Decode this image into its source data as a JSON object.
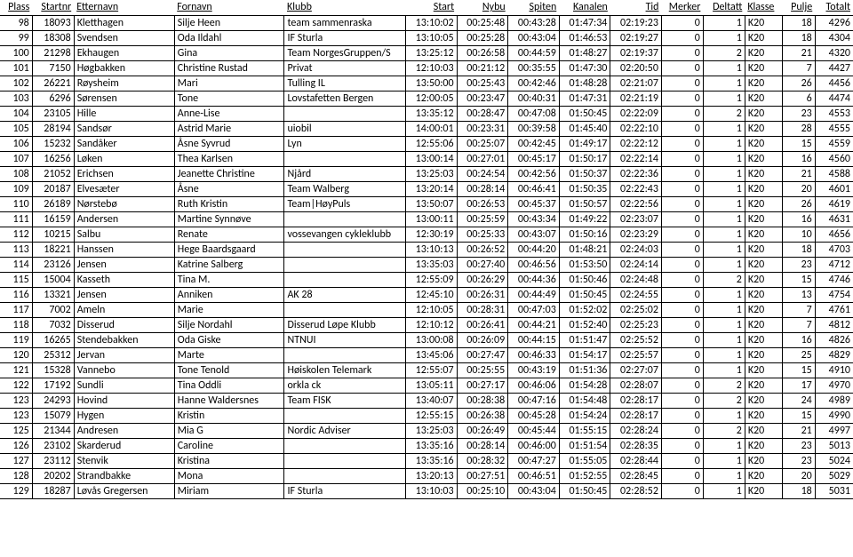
{
  "columns": [
    "Plass",
    "Startnr",
    "Etternavn",
    "Fornavn",
    "Klubb",
    "Start",
    "Nybu",
    "Spiten",
    "Kanalen",
    "Tid",
    "Merker",
    "Deltatt",
    "Klasse",
    "Pulje",
    "Totalt"
  ],
  "align": [
    "num",
    "num",
    "txt",
    "txt",
    "txt",
    "num",
    "num",
    "num",
    "num",
    "num",
    "num",
    "num",
    "txt",
    "num",
    "num"
  ],
  "rows": [
    [
      "98",
      "18093",
      "Kletthagen",
      "Silje Heen",
      "team sammenraska",
      "13:10:02",
      "00:25:48",
      "00:43:28",
      "01:47:34",
      "02:19:23",
      "0",
      "1",
      "K20",
      "18",
      "4296"
    ],
    [
      "99",
      "18308",
      "Svendsen",
      "Oda Ildahl",
      "IF Sturla",
      "13:10:05",
      "00:25:28",
      "00:43:04",
      "01:46:53",
      "02:19:27",
      "0",
      "1",
      "K20",
      "18",
      "4304"
    ],
    [
      "100",
      "21298",
      "Ekhaugen",
      "Gina",
      "Team NorgesGruppen/S",
      "13:25:12",
      "00:26:58",
      "00:44:59",
      "01:48:27",
      "02:19:37",
      "0",
      "2",
      "K20",
      "21",
      "4320"
    ],
    [
      "101",
      "7150",
      "Høgbakken",
      "Christine Rustad",
      "Privat",
      "12:10:03",
      "00:21:12",
      "00:35:55",
      "01:47:30",
      "02:20:50",
      "0",
      "1",
      "K20",
      "7",
      "4427"
    ],
    [
      "102",
      "26221",
      "Røysheim",
      "Mari",
      "Tulling IL",
      "13:50:00",
      "00:25:43",
      "00:42:46",
      "01:48:28",
      "02:21:07",
      "0",
      "1",
      "K20",
      "26",
      "4456"
    ],
    [
      "103",
      "6296",
      "Sørensen",
      "Tone",
      "Lovstafetten Bergen",
      "12:00:05",
      "00:23:47",
      "00:40:31",
      "01:47:31",
      "02:21:19",
      "0",
      "1",
      "K20",
      "6",
      "4474"
    ],
    [
      "104",
      "23105",
      "Hille",
      "Anne-Lise",
      "",
      "13:35:12",
      "00:28:47",
      "00:47:08",
      "01:50:45",
      "02:22:09",
      "0",
      "2",
      "K20",
      "23",
      "4553"
    ],
    [
      "105",
      "28194",
      "Sandsør",
      "Astrid Marie",
      "uiobil",
      "14:00:01",
      "00:23:31",
      "00:39:58",
      "01:45:40",
      "02:22:10",
      "0",
      "1",
      "K20",
      "28",
      "4555"
    ],
    [
      "106",
      "15232",
      "Sandåker",
      "Åsne Syvrud",
      "Lyn",
      "12:55:06",
      "00:25:07",
      "00:42:45",
      "01:49:17",
      "02:22:12",
      "0",
      "1",
      "K20",
      "15",
      "4559"
    ],
    [
      "107",
      "16256",
      "Løken",
      "Thea Karlsen",
      "",
      "13:00:14",
      "00:27:01",
      "00:45:17",
      "01:50:17",
      "02:22:14",
      "0",
      "1",
      "K20",
      "16",
      "4560"
    ],
    [
      "108",
      "21052",
      "Erichsen",
      "Jeanette Christine",
      "Njård",
      "13:25:03",
      "00:24:54",
      "00:42:56",
      "01:50:37",
      "02:22:36",
      "0",
      "1",
      "K20",
      "21",
      "4588"
    ],
    [
      "109",
      "20187",
      "Elvesæter",
      "Åsne",
      "Team Walberg",
      "13:20:14",
      "00:28:14",
      "00:46:41",
      "01:50:35",
      "02:22:43",
      "0",
      "1",
      "K20",
      "20",
      "4601"
    ],
    [
      "110",
      "26189",
      "Nørstebø",
      "Ruth Kristin",
      "Team|HøyPuls",
      "13:50:07",
      "00:26:53",
      "00:45:37",
      "01:50:57",
      "02:22:56",
      "0",
      "1",
      "K20",
      "26",
      "4619"
    ],
    [
      "111",
      "16159",
      "Andersen",
      "Martine Synnøve",
      "",
      "13:00:11",
      "00:25:59",
      "00:43:34",
      "01:49:22",
      "02:23:07",
      "0",
      "1",
      "K20",
      "16",
      "4631"
    ],
    [
      "112",
      "10215",
      "Salbu",
      "Renate",
      "vossevangen cykleklubb",
      "12:30:19",
      "00:25:33",
      "00:43:07",
      "01:50:16",
      "02:23:29",
      "0",
      "1",
      "K20",
      "10",
      "4656"
    ],
    [
      "113",
      "18221",
      "Hanssen",
      "Hege Baardsgaard",
      "",
      "13:10:13",
      "00:26:52",
      "00:44:20",
      "01:48:21",
      "02:24:03",
      "0",
      "1",
      "K20",
      "18",
      "4703"
    ],
    [
      "114",
      "23126",
      "Jensen",
      "Katrine Salberg",
      "",
      "13:35:03",
      "00:27:40",
      "00:46:56",
      "01:53:50",
      "02:24:14",
      "0",
      "1",
      "K20",
      "23",
      "4712"
    ],
    [
      "115",
      "15004",
      "Kasseth",
      "Tina M.",
      "",
      "12:55:09",
      "00:26:29",
      "00:44:36",
      "01:50:46",
      "02:24:48",
      "0",
      "2",
      "K20",
      "15",
      "4746"
    ],
    [
      "116",
      "13321",
      "Jensen",
      "Anniken",
      "AK 28",
      "12:45:10",
      "00:26:31",
      "00:44:49",
      "01:50:45",
      "02:24:55",
      "0",
      "1",
      "K20",
      "13",
      "4754"
    ],
    [
      "117",
      "7002",
      "Ameln",
      "Marie",
      "",
      "12:10:05",
      "00:28:31",
      "00:47:03",
      "01:52:02",
      "02:25:02",
      "0",
      "1",
      "K20",
      "7",
      "4761"
    ],
    [
      "118",
      "7032",
      "Disserud",
      "Silje Nordahl",
      "Disserud Løpe Klubb",
      "12:10:12",
      "00:26:41",
      "00:44:21",
      "01:52:40",
      "02:25:23",
      "0",
      "1",
      "K20",
      "7",
      "4812"
    ],
    [
      "119",
      "16265",
      "Stendebakken",
      "Oda Giske",
      "NTNUI",
      "13:00:08",
      "00:26:09",
      "00:44:15",
      "01:51:47",
      "02:25:52",
      "0",
      "1",
      "K20",
      "16",
      "4826"
    ],
    [
      "120",
      "25312",
      "Jervan",
      "Marte",
      "",
      "13:45:06",
      "00:27:47",
      "00:46:33",
      "01:54:17",
      "02:25:57",
      "0",
      "1",
      "K20",
      "25",
      "4829"
    ],
    [
      "121",
      "15328",
      "Vannebo",
      "Tone Tenold",
      "Høiskolen Telemark",
      "12:55:07",
      "00:25:55",
      "00:43:19",
      "01:51:36",
      "02:27:07",
      "0",
      "1",
      "K20",
      "15",
      "4910"
    ],
    [
      "122",
      "17192",
      "Sundli",
      "Tina Oddli",
      "orkla ck",
      "13:05:11",
      "00:27:17",
      "00:46:06",
      "01:54:28",
      "02:28:07",
      "0",
      "2",
      "K20",
      "17",
      "4970"
    ],
    [
      "123",
      "24293",
      "Hovind",
      "Hanne Waldersnes",
      "Team FISK",
      "13:40:07",
      "00:28:38",
      "00:47:16",
      "01:54:48",
      "02:28:17",
      "0",
      "2",
      "K20",
      "24",
      "4989"
    ],
    [
      "123",
      "15079",
      "Hygen",
      "Kristin",
      "",
      "12:55:15",
      "00:26:38",
      "00:45:28",
      "01:54:24",
      "02:28:17",
      "0",
      "1",
      "K20",
      "15",
      "4990"
    ],
    [
      "125",
      "21344",
      "Andresen",
      "Mia G",
      "Nordic Adviser",
      "13:25:03",
      "00:26:49",
      "00:45:44",
      "01:55:15",
      "02:28:24",
      "0",
      "2",
      "K20",
      "21",
      "4997"
    ],
    [
      "126",
      "23102",
      "Skarderud",
      "Caroline",
      "",
      "13:35:16",
      "00:28:14",
      "00:46:00",
      "01:51:54",
      "02:28:35",
      "0",
      "1",
      "K20",
      "23",
      "5013"
    ],
    [
      "127",
      "23112",
      "Stenvik",
      "Kristina",
      "",
      "13:35:16",
      "00:28:32",
      "00:47:27",
      "01:55:05",
      "02:28:44",
      "0",
      "1",
      "K20",
      "23",
      "5024"
    ],
    [
      "128",
      "20202",
      "Strandbakke",
      "Mona",
      "",
      "13:20:13",
      "00:27:51",
      "00:46:51",
      "01:52:55",
      "02:28:45",
      "0",
      "1",
      "K20",
      "20",
      "5029"
    ],
    [
      "129",
      "18287",
      "Løvås Gregersen",
      "Miriam",
      "IF Sturla",
      "13:10:03",
      "00:25:10",
      "00:43:04",
      "01:50:45",
      "02:28:52",
      "0",
      "1",
      "K20",
      "18",
      "5031"
    ]
  ]
}
